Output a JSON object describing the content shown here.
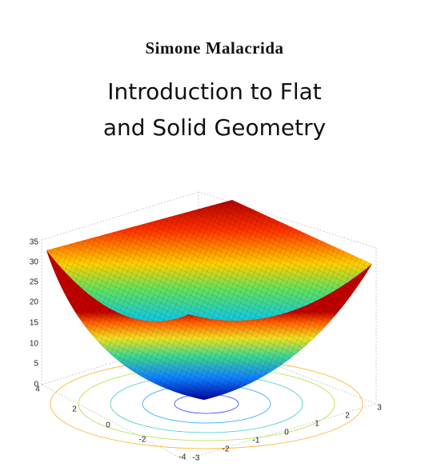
{
  "author": "Simone Malacrida",
  "title": [
    "Introduction to Flat",
    "and Solid Geometry"
  ],
  "figure": {
    "z_ticks": [
      "35",
      "30",
      "25",
      "20",
      "15",
      "10",
      "5",
      "0"
    ],
    "x_ticks": [
      "4",
      "2",
      "0",
      "-2",
      "-4"
    ],
    "y_ticks": [
      "-3",
      "-2",
      "-1",
      "0",
      "1",
      "2",
      "3"
    ]
  }
}
